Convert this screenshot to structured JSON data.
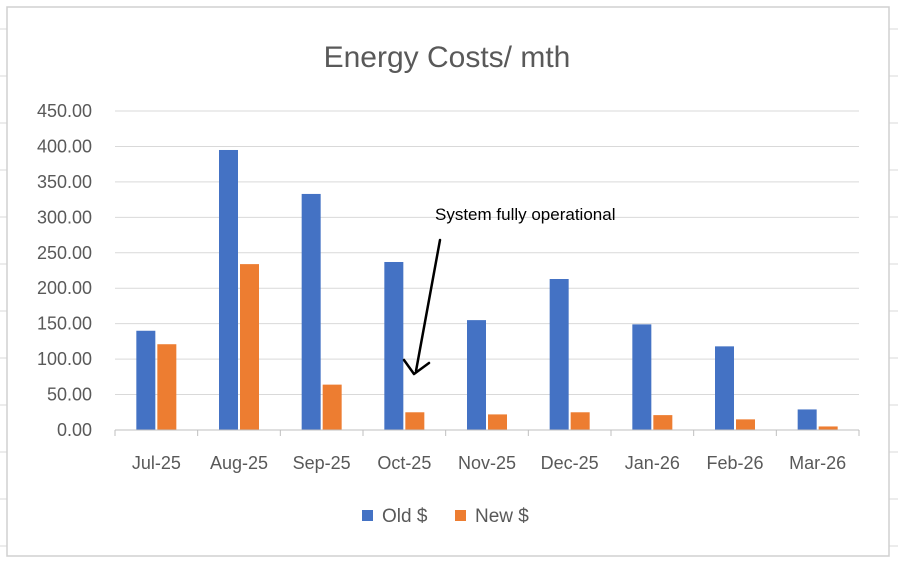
{
  "chart_data": {
    "type": "bar",
    "title": "Energy Costs/ mth",
    "categories": [
      "Jul-25",
      "Aug-25",
      "Sep-25",
      "Oct-25",
      "Nov-25",
      "Dec-25",
      "Jan-26",
      "Feb-26",
      "Mar-26"
    ],
    "series": [
      {
        "name": "Old $",
        "color": "#4472C4",
        "values": [
          140,
          395,
          333,
          237,
          155,
          213,
          149,
          118,
          29
        ]
      },
      {
        "name": "New $",
        "color": "#ED7D31",
        "values": [
          121,
          234,
          64,
          25,
          22,
          25,
          21,
          15,
          5
        ]
      }
    ],
    "ylim": [
      0,
      450
    ],
    "yticks": [
      "0.00",
      "50.00",
      "100.00",
      "150.00",
      "200.00",
      "250.00",
      "300.00",
      "350.00",
      "400.00",
      "450.00"
    ],
    "xlabel": "",
    "ylabel": "",
    "grid": true,
    "legend_position": "bottom",
    "annotation": {
      "text": "System fully operational",
      "points_to_category": "Oct-25"
    }
  }
}
